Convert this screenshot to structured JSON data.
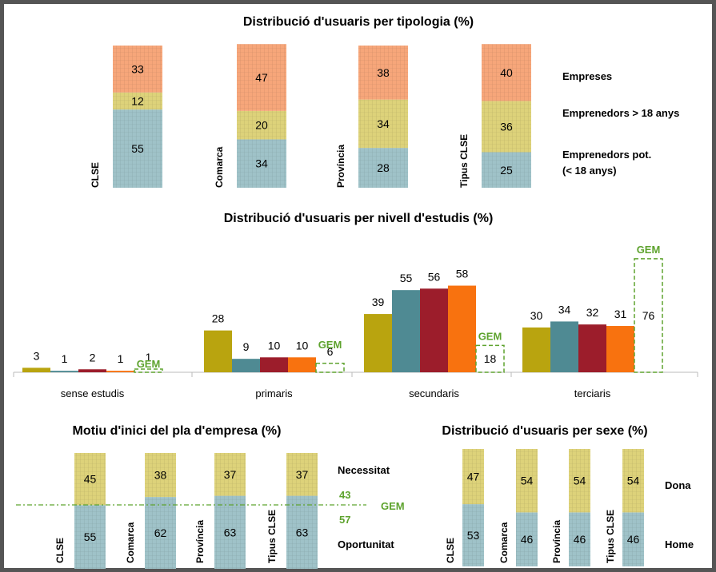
{
  "colors": {
    "empreses": "#f6a67a",
    "emprenedors": "#ddd27a",
    "potencials": "#9fc2c8",
    "gem": "#5ea32e",
    "clse_edu": "#b9a40f",
    "comarca_edu": "#4f8a93",
    "provincia_edu": "#9c1d2b",
    "tipus_edu": "#f8720f"
  },
  "chart_data": [
    {
      "type": "bar",
      "stacked": true,
      "title": "Distribució d'usuaris per tipologia (%)",
      "categories": [
        "CLSE",
        "Comarca",
        "Província",
        "Tipus CLSE"
      ],
      "series": [
        {
          "name": "Emprenedors pot. (< 18 anys)",
          "values": [
            55,
            34,
            28,
            25
          ]
        },
        {
          "name": "Emprenedors > 18 anys",
          "values": [
            12,
            20,
            34,
            36
          ]
        },
        {
          "name": "Empreses",
          "values": [
            33,
            47,
            38,
            40
          ]
        }
      ],
      "legend_lines": [
        "Empreses",
        "Emprenedors > 18 anys",
        "Emprenedors pot.",
        "(< 18 anys)"
      ]
    },
    {
      "type": "bar",
      "title": "Distribució d'usuaris per nivell d'estudis (%)",
      "categories": [
        "sense estudis",
        "primaris",
        "secundaris",
        "terciaris"
      ],
      "series": [
        {
          "values": [
            3,
            28,
            39,
            30
          ]
        },
        {
          "values": [
            1,
            9,
            55,
            34
          ]
        },
        {
          "values": [
            2,
            10,
            56,
            32
          ]
        },
        {
          "values": [
            1,
            10,
            58,
            31
          ]
        },
        {
          "name": "GEM",
          "values": [
            1,
            6,
            18,
            76
          ]
        }
      ]
    },
    {
      "type": "bar",
      "stacked": true,
      "title": "Motiu d'inici del pla d'empresa (%)",
      "categories": [
        "CLSE",
        "Comarca",
        "Província",
        "Tipus CLSE"
      ],
      "series": [
        {
          "name": "Oportunitat",
          "values": [
            55,
            62,
            63,
            63
          ]
        },
        {
          "name": "Necessitat",
          "values": [
            45,
            38,
            37,
            37
          ]
        }
      ],
      "reference": {
        "name": "GEM",
        "values": [
          43,
          57
        ]
      }
    },
    {
      "type": "bar",
      "stacked": true,
      "title": "Distribució d'usuaris per sexe (%)",
      "categories": [
        "CLSE",
        "Comarca",
        "Província",
        "Tipus CLSE"
      ],
      "series": [
        {
          "name": "Home",
          "values": [
            53,
            46,
            46,
            46
          ]
        },
        {
          "name": "Dona",
          "values": [
            47,
            54,
            54,
            54
          ]
        }
      ]
    }
  ]
}
